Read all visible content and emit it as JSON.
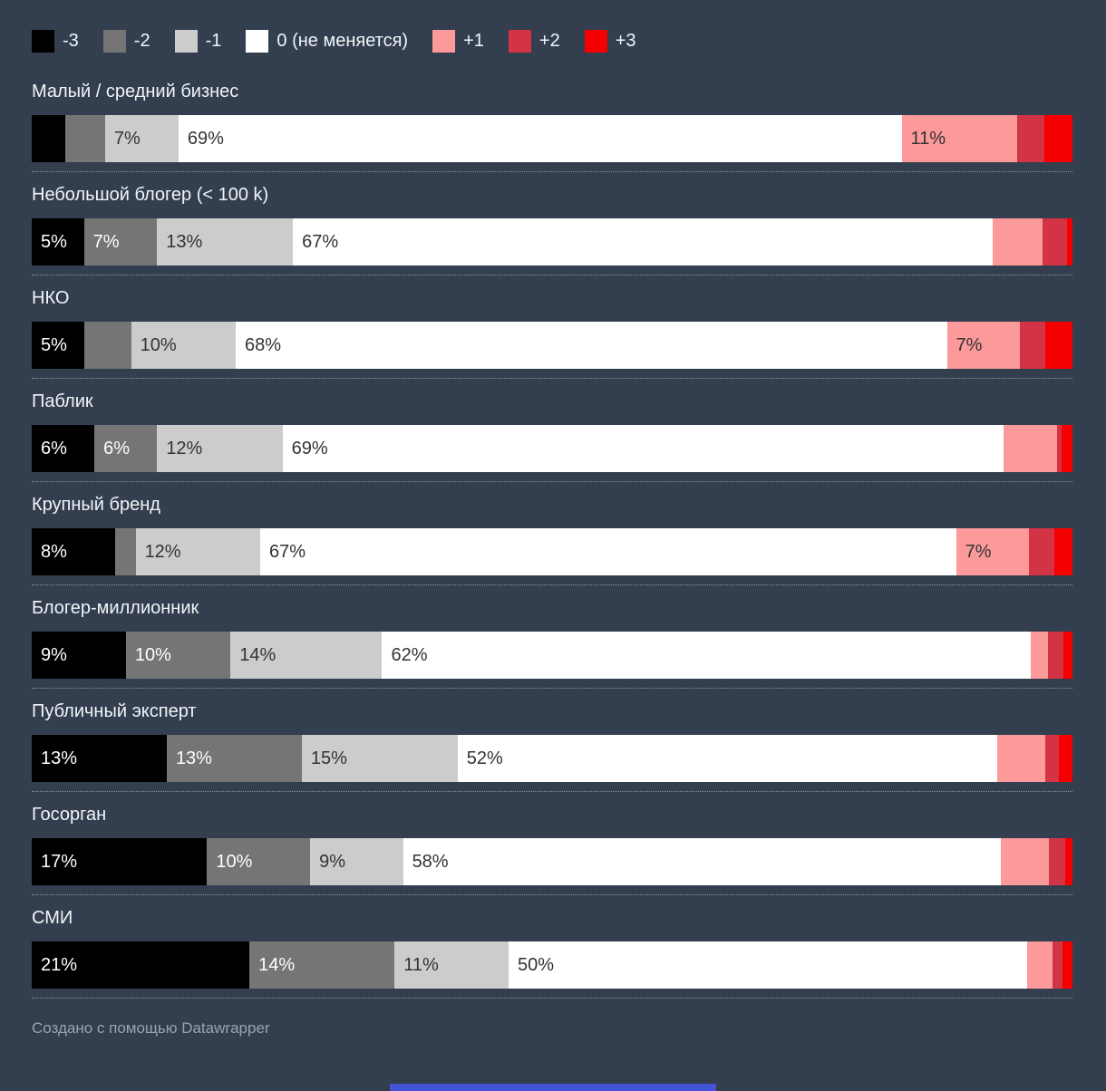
{
  "page": {
    "background": "#333E4F"
  },
  "legend": {
    "items": [
      {
        "label": "-3",
        "color": "#000000"
      },
      {
        "label": "-2",
        "color": "#757575"
      },
      {
        "label": "-1",
        "color": "#CCCCCC"
      },
      {
        "label": "0 (не меняется)",
        "color": "#FFFFFF"
      },
      {
        "label": "+1",
        "color": "#FC999A"
      },
      {
        "label": "+2",
        "color": "#D23445"
      },
      {
        "label": "+3",
        "color": "#F50000"
      }
    ]
  },
  "chart_data": {
    "type": "bar",
    "stacked": true,
    "orientation": "horizontal",
    "unit": "%",
    "xlim": [
      0,
      100
    ],
    "grid": false,
    "legend_position": "top",
    "series_labels": [
      "-3",
      "-2",
      "-1",
      "0 (не меняется)",
      "+1",
      "+2",
      "+3"
    ],
    "series_colors": [
      "#000000",
      "#757575",
      "#CCCCCC",
      "#FFFFFF",
      "#FC999A",
      "#D23445",
      "#F50000"
    ],
    "categories": [
      "Малый / средний бизнес",
      "Небольшой блогер (< 100 k)",
      "НКО",
      "Паблик",
      "Крупный бренд",
      "Блогер-миллионник",
      "Публичный эксперт",
      "Госорган",
      "СМИ"
    ],
    "rows": [
      {
        "category": "Малый / средний бизнес",
        "values": [
          3.2,
          3.8,
          7,
          69,
          11,
          2.6,
          2.7
        ],
        "labels": [
          "",
          "",
          "7%",
          "69%",
          "11%",
          "",
          ""
        ]
      },
      {
        "category": "Небольшой блогер (< 100 k)",
        "values": [
          5,
          7,
          13,
          67,
          4.7,
          2.4,
          0.5
        ],
        "labels": [
          "5%",
          "7%",
          "13%",
          "67%",
          "",
          "",
          ""
        ]
      },
      {
        "category": "НКО",
        "values": [
          5,
          4.5,
          10,
          68,
          7,
          2.4,
          2.6
        ],
        "labels": [
          "5%",
          "",
          "10%",
          "68%",
          "7%",
          "",
          ""
        ]
      },
      {
        "category": "Паблик",
        "values": [
          6,
          6,
          12,
          69,
          5.1,
          0.5,
          1
        ],
        "labels": [
          "6%",
          "6%",
          "12%",
          "69%",
          "",
          "",
          ""
        ]
      },
      {
        "category": "Крупный бренд",
        "values": [
          8,
          2,
          12,
          67,
          7,
          2.5,
          1.7
        ],
        "labels": [
          "8%",
          "",
          "12%",
          "67%",
          "7%",
          "",
          ""
        ]
      },
      {
        "category": "Блогер-миллионник",
        "values": [
          9,
          10,
          14.5,
          62,
          1.7,
          1.4,
          0.9
        ],
        "labels": [
          "9%",
          "10%",
          "14%",
          "62%",
          "",
          "",
          ""
        ]
      },
      {
        "category": "Публичный эксперт",
        "values": [
          13,
          13,
          15,
          52,
          4.6,
          1.3,
          1.3
        ],
        "labels": [
          "13%",
          "13%",
          "15%",
          "52%",
          "",
          "",
          ""
        ]
      },
      {
        "category": "Госорган",
        "values": [
          17,
          10,
          9,
          58,
          4.6,
          1.6,
          0.7
        ],
        "labels": [
          "17%",
          "10%",
          "9%",
          "58%",
          "",
          "",
          ""
        ]
      },
      {
        "category": "СМИ",
        "values": [
          21,
          14,
          11,
          50,
          2.5,
          0.9,
          1
        ],
        "labels": [
          "21%",
          "14%",
          "11%",
          "50%",
          "",
          "",
          ""
        ]
      }
    ]
  },
  "footer": {
    "credit": "Создано с помощью Datawrapper"
  },
  "decor": {
    "bottom_strip_color": "#4254D5"
  }
}
